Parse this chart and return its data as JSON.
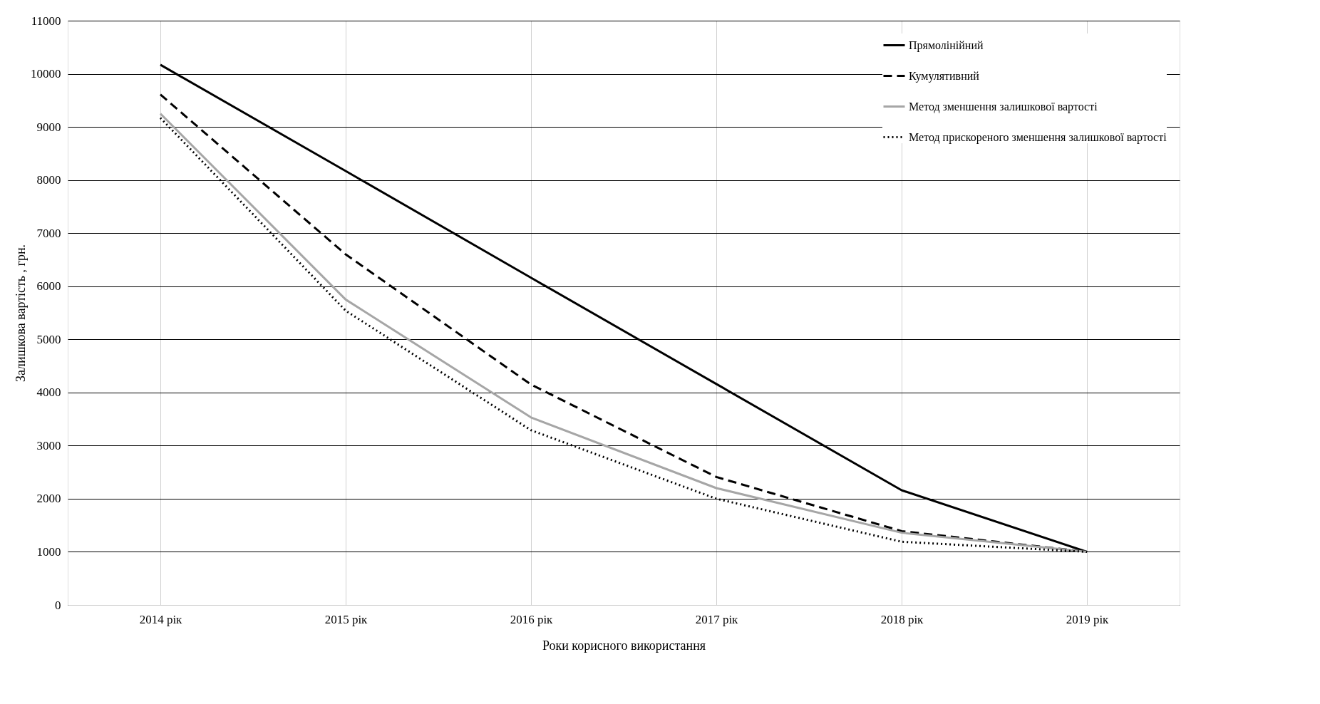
{
  "chart_data": {
    "type": "line",
    "xlabel": "Роки корисного використання",
    "ylabel": "Залишкова вартість , грн.",
    "categories": [
      "2014 рік",
      "2015 рік",
      "2016 рік",
      "2017 рік",
      "2018 рік",
      "2019 рік"
    ],
    "ylim": [
      0,
      11000
    ],
    "yticks": [
      0,
      1000,
      2000,
      3000,
      4000,
      5000,
      6000,
      7000,
      8000,
      9000,
      10000,
      11000
    ],
    "grid": true,
    "legend": "top right",
    "marker": "none",
    "series": [
      {
        "name": "Прямолінійний",
        "color": "#000000",
        "line_style": "solid",
        "values": [
          10170,
          8170,
          6160,
          4160,
          2160,
          1000
        ]
      },
      {
        "name": "Кумулятивний",
        "color": "#000000",
        "line_style": "dashed",
        "values": [
          9610,
          6600,
          4150,
          2410,
          1390,
          1000
        ]
      },
      {
        "name": "Метод зменшення залишкової вартості",
        "color": "#a6a6a6",
        "line_style": "solid",
        "values": [
          9250,
          5750,
          3530,
          2200,
          1360,
          1000
        ]
      },
      {
        "name": "Метод прискореного зменшення залишкової вартості",
        "color": "#000000",
        "line_style": "dotted",
        "values": [
          9170,
          5540,
          3290,
          2000,
          1190,
          1000
        ]
      }
    ]
  }
}
